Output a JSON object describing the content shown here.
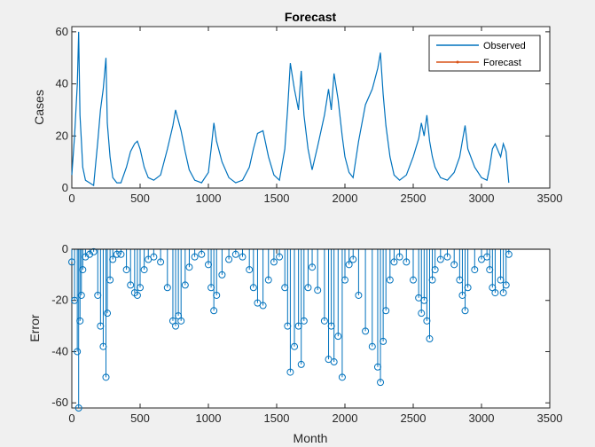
{
  "chart_data": [
    {
      "type": "line",
      "title": "Forecast",
      "xlabel": "",
      "ylabel": "Cases",
      "xlim": [
        0,
        3500
      ],
      "ylim": [
        0,
        62
      ],
      "xticks": [
        0,
        500,
        1000,
        1500,
        2000,
        2500,
        3000,
        3500
      ],
      "yticks": [
        0,
        20,
        40,
        60
      ],
      "xtick_labels": [
        "0",
        "500",
        "1000",
        "1500",
        "2000",
        "2500",
        "3000",
        "3500"
      ],
      "ytick_labels": [
        "0",
        "20",
        "40",
        "60"
      ],
      "grid": false,
      "legend": {
        "position": "top-right",
        "entries": [
          "Observed",
          "Forecast"
        ]
      },
      "series": [
        {
          "name": "Observed",
          "color": "#0072BD",
          "x": [
            0,
            20,
            40,
            50,
            60,
            70,
            80,
            100,
            130,
            160,
            190,
            210,
            230,
            250,
            260,
            280,
            300,
            330,
            360,
            400,
            430,
            460,
            480,
            500,
            530,
            560,
            600,
            650,
            700,
            740,
            760,
            780,
            800,
            830,
            860,
            900,
            950,
            1000,
            1020,
            1040,
            1060,
            1100,
            1150,
            1200,
            1250,
            1300,
            1330,
            1360,
            1400,
            1440,
            1480,
            1520,
            1560,
            1580,
            1600,
            1630,
            1660,
            1680,
            1700,
            1730,
            1760,
            1800,
            1850,
            1880,
            1900,
            1920,
            1950,
            1980,
            2000,
            2030,
            2060,
            2100,
            2150,
            2200,
            2240,
            2260,
            2280,
            2300,
            2330,
            2360,
            2400,
            2450,
            2500,
            2540,
            2560,
            2580,
            2600,
            2620,
            2640,
            2660,
            2700,
            2750,
            2800,
            2840,
            2860,
            2880,
            2900,
            2950,
            3000,
            3040,
            3060,
            3080,
            3100,
            3140,
            3160,
            3180,
            3200
          ],
          "y": [
            5,
            20,
            40,
            60,
            28,
            18,
            8,
            3,
            2,
            1,
            18,
            30,
            38,
            50,
            25,
            12,
            4,
            2,
            2,
            8,
            14,
            17,
            18,
            15,
            8,
            4,
            3,
            5,
            15,
            24,
            30,
            26,
            22,
            14,
            7,
            3,
            2,
            6,
            15,
            25,
            18,
            10,
            4,
            2,
            3,
            8,
            15,
            21,
            22,
            12,
            5,
            3,
            15,
            30,
            48,
            38,
            30,
            45,
            28,
            15,
            7,
            16,
            28,
            38,
            30,
            44,
            34,
            20,
            12,
            6,
            4,
            18,
            32,
            38,
            46,
            52,
            36,
            24,
            12,
            5,
            3,
            5,
            12,
            19,
            25,
            20,
            28,
            18,
            12,
            8,
            4,
            3,
            6,
            12,
            18,
            24,
            15,
            8,
            4,
            3,
            8,
            15,
            17,
            12,
            17,
            14,
            2
          ],
          "_comment": ""
        },
        {
          "name": "Forecast",
          "color": "#D95319",
          "x": [],
          "y": []
        }
      ]
    },
    {
      "type": "scatter",
      "title": "",
      "xlabel": "Month",
      "ylabel": "Error",
      "xlim": [
        0,
        3500
      ],
      "ylim": [
        -62,
        0
      ],
      "xticks": [
        0,
        500,
        1000,
        1500,
        2000,
        2500,
        3000,
        3500
      ],
      "yticks": [
        -60,
        -40,
        -20,
        0
      ],
      "xtick_labels": [
        "0",
        "500",
        "1000",
        "1500",
        "2000",
        "2500",
        "3000",
        "3500"
      ],
      "ytick_labels": [
        "-60",
        "-40",
        "-20",
        "0"
      ],
      "grid": false,
      "series": [
        {
          "color": "#0072BD",
          "marker": "circle",
          "x": [
            0,
            20,
            40,
            50,
            60,
            70,
            80,
            100,
            130,
            160,
            190,
            210,
            230,
            250,
            260,
            280,
            300,
            330,
            360,
            400,
            430,
            460,
            480,
            500,
            530,
            560,
            600,
            650,
            700,
            740,
            760,
            780,
            800,
            830,
            860,
            900,
            950,
            1000,
            1020,
            1040,
            1060,
            1100,
            1150,
            1200,
            1250,
            1300,
            1330,
            1360,
            1400,
            1440,
            1480,
            1520,
            1560,
            1580,
            1600,
            1630,
            1660,
            1680,
            1700,
            1730,
            1760,
            1800,
            1850,
            1880,
            1900,
            1920,
            1950,
            1980,
            2000,
            2030,
            2060,
            2100,
            2150,
            2200,
            2240,
            2260,
            2280,
            2300,
            2330,
            2360,
            2400,
            2450,
            2500,
            2540,
            2560,
            2580,
            2600,
            2620,
            2640,
            2660,
            2700,
            2750,
            2800,
            2840,
            2860,
            2880,
            2900,
            2950,
            3000,
            3040,
            3060,
            3080,
            3100,
            3140,
            3160,
            3180,
            3200
          ],
          "y": [
            -5,
            -20,
            -40,
            -62,
            -28,
            -18,
            -8,
            -3,
            -2,
            -1,
            -18,
            -30,
            -38,
            -50,
            -25,
            -12,
            -4,
            -2,
            -2,
            -8,
            -14,
            -17,
            -18,
            -15,
            -8,
            -4,
            -3,
            -5,
            -15,
            -28,
            -30,
            -26,
            -28,
            -14,
            -7,
            -3,
            -2,
            -6,
            -15,
            -24,
            -18,
            -10,
            -4,
            -2,
            -3,
            -8,
            -15,
            -21,
            -22,
            -12,
            -5,
            -3,
            -15,
            -30,
            -48,
            -38,
            -30,
            -45,
            -28,
            -15,
            -7,
            -16,
            -28,
            -43,
            -30,
            -44,
            -34,
            -50,
            -12,
            -6,
            -4,
            -18,
            -32,
            -38,
            -46,
            -52,
            -36,
            -24,
            -12,
            -5,
            -3,
            -5,
            -12,
            -19,
            -25,
            -20,
            -28,
            -35,
            -12,
            -8,
            -4,
            -3,
            -6,
            -12,
            -18,
            -24,
            -15,
            -8,
            -4,
            -3,
            -8,
            -15,
            -17,
            -12,
            -17,
            -14,
            -2
          ]
        }
      ]
    }
  ]
}
